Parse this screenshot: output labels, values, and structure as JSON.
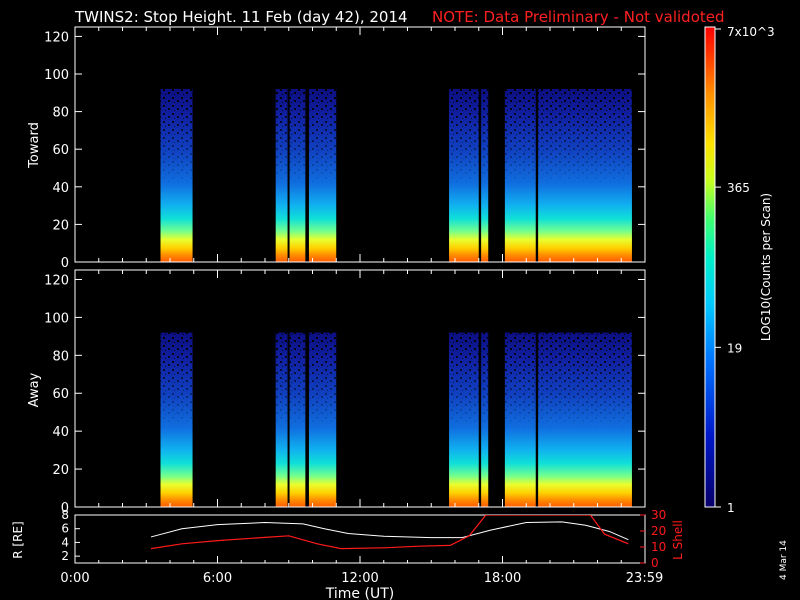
{
  "title": {
    "main": "TWINS2: Stop Height. 11 Feb (day  42), 2014",
    "note": "NOTE: Data Preliminary - Not validoted"
  },
  "side_stamp": "4 Mar 14",
  "colors": {
    "background": "#000000",
    "frame": "#ffffff",
    "note": "#ff2020",
    "r_line": "#ffffff",
    "lshell_line": "#ff1a1a",
    "gap": "#000000"
  },
  "chart_data": [
    {
      "type": "heatmap",
      "panel": "toward",
      "ylabel": "Toward",
      "ylim": [
        0,
        125
      ],
      "yticks": [
        "0",
        "20",
        "40",
        "60",
        "80",
        "100",
        "120"
      ],
      "xlim_hours": [
        0,
        24
      ],
      "data_ceiling": 92,
      "active_blocks_hours": [
        [
          3.6,
          4.95
        ],
        [
          8.45,
          11.0
        ],
        [
          15.75,
          17.4
        ],
        [
          18.1,
          23.45
        ]
      ],
      "gaps_hours": [
        [
          8.95,
          9.0
        ],
        [
          9.7,
          9.85
        ],
        [
          17.0,
          17.1
        ],
        [
          19.4,
          19.5
        ]
      ]
    },
    {
      "type": "heatmap",
      "panel": "away",
      "ylabel": "Away",
      "ylim": [
        0,
        125
      ],
      "yticks": [
        "0",
        "20",
        "40",
        "60",
        "80",
        "100",
        "120"
      ],
      "xlim_hours": [
        0,
        24
      ],
      "data_ceiling": 92,
      "active_blocks_hours": [
        [
          3.6,
          4.95
        ],
        [
          8.45,
          11.0
        ],
        [
          15.75,
          17.4
        ],
        [
          18.1,
          23.45
        ]
      ],
      "gaps_hours": [
        [
          8.95,
          9.0
        ],
        [
          9.7,
          9.85
        ],
        [
          17.0,
          17.1
        ],
        [
          19.4,
          19.5
        ]
      ]
    },
    {
      "type": "line",
      "panel": "ephemeris",
      "ylabel": "R [RE]",
      "y2label": "L Shell",
      "ylim": [
        1,
        8
      ],
      "yticks": [
        "2",
        "4",
        "6",
        "8"
      ],
      "y2lim": [
        0,
        30
      ],
      "y2ticks": [
        "0",
        "10",
        "20",
        "30"
      ],
      "xlabel": "Time (UT)",
      "xticks": [
        "0:00",
        "6:00",
        "12:00",
        "18:00",
        "23:59"
      ],
      "series": [
        {
          "axis": "left",
          "x": [
            3.2,
            4.5,
            6,
            8,
            9.6,
            10.5,
            11.5,
            13,
            15,
            16.3,
            17.5,
            19,
            20.5,
            21.5,
            22.5,
            23.3
          ],
          "values": [
            4.8,
            6.0,
            6.6,
            6.9,
            6.7,
            6.0,
            5.3,
            4.9,
            4.7,
            4.7,
            5.8,
            6.9,
            7.0,
            6.5,
            5.6,
            4.4
          ]
        },
        {
          "axis": "right",
          "x": [
            3.2,
            4.5,
            6,
            8,
            9,
            10.2,
            11.2,
            13,
            14.5,
            15.8,
            16.6,
            17.3,
            21.7,
            22.3,
            23.3
          ],
          "values": [
            9,
            12,
            14,
            16,
            17,
            12,
            9,
            9.5,
            10.5,
            11,
            17,
            30,
            30,
            18,
            12
          ]
        }
      ]
    }
  ],
  "colorbar": {
    "label": "LOG10(Counts per Scan)",
    "log_min": 0,
    "log_max": 3.845,
    "ticks": [
      {
        "value": 1,
        "label": "1"
      },
      {
        "value": 19,
        "label": "19"
      },
      {
        "value": 365,
        "label": "365"
      },
      {
        "value": 7000,
        "label": "7x10^3"
      }
    ]
  }
}
